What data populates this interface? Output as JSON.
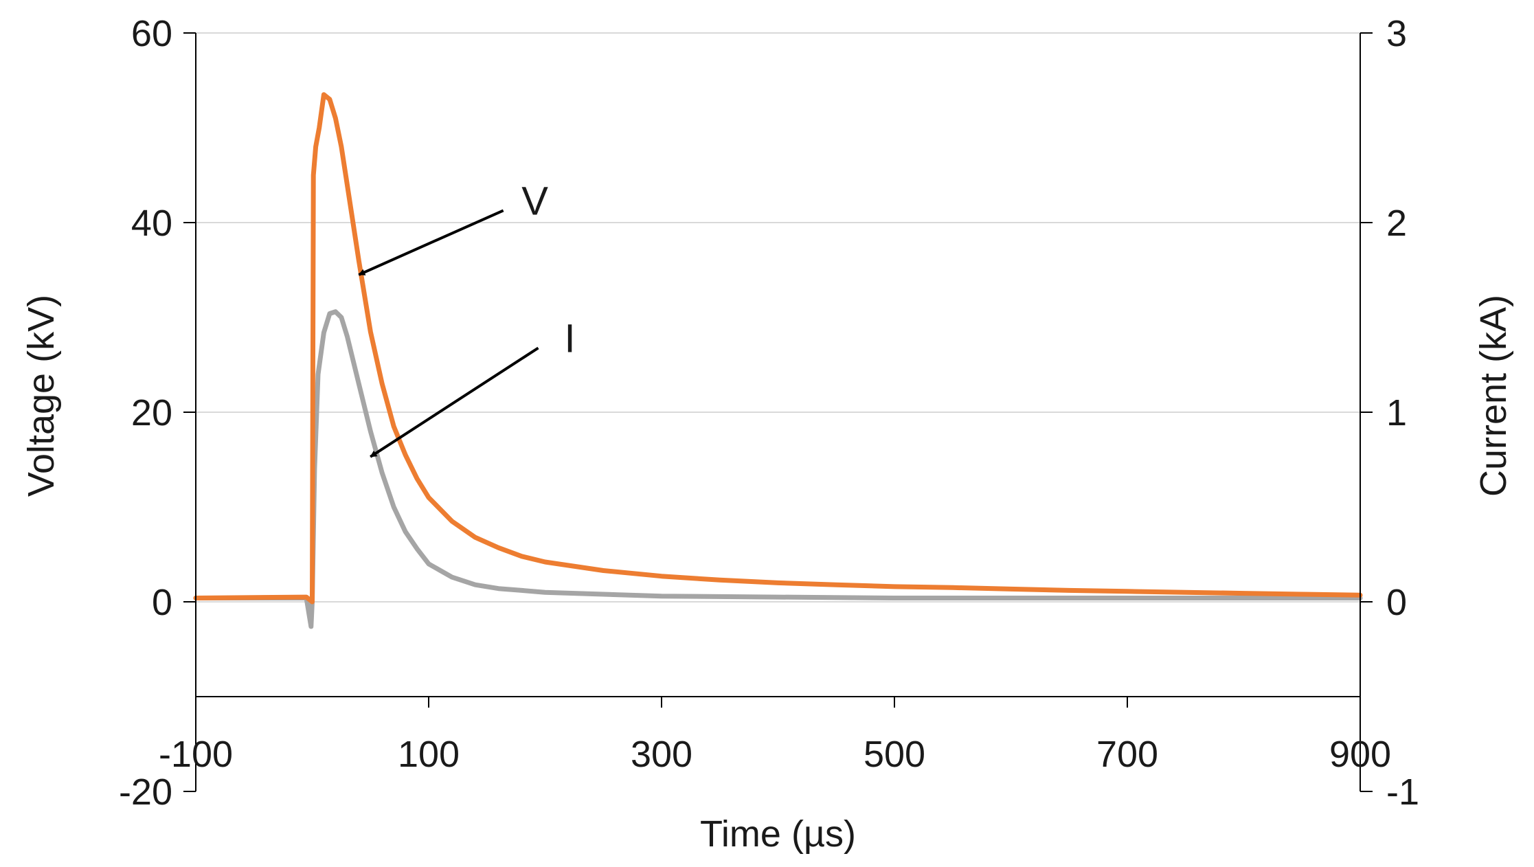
{
  "chart_data": {
    "type": "line",
    "xlabel": "Time (µs)",
    "ylabel": "Voltage (kV)",
    "y2label": "Current (kA)",
    "xlim": [
      -100,
      900
    ],
    "ylim": [
      -20,
      60
    ],
    "y2lim": [
      -1,
      3
    ],
    "x_ticks": [
      -100,
      100,
      300,
      500,
      700,
      900
    ],
    "y_ticks": [
      -20,
      0,
      20,
      40,
      60
    ],
    "y2_ticks": [
      -1,
      0,
      1,
      2,
      3
    ],
    "grid": true,
    "series": [
      {
        "name": "V",
        "axis": "left",
        "color": "#ed7d31",
        "x": [
          -100,
          -5,
          0,
          1,
          3,
          6,
          10,
          15,
          20,
          25,
          30,
          40,
          50,
          60,
          70,
          80,
          90,
          100,
          120,
          140,
          160,
          180,
          200,
          250,
          300,
          350,
          400,
          450,
          500,
          550,
          600,
          650,
          700,
          750,
          800,
          850,
          900
        ],
        "values": [
          0.4,
          0.5,
          0,
          45,
          48,
          50,
          53.5,
          53,
          51,
          48,
          44,
          36,
          28.5,
          23,
          18.5,
          15.5,
          13,
          11,
          8.5,
          6.8,
          5.7,
          4.8,
          4.2,
          3.3,
          2.7,
          2.3,
          2.0,
          1.8,
          1.6,
          1.5,
          1.35,
          1.2,
          1.1,
          1.0,
          0.9,
          0.8,
          0.7
        ]
      },
      {
        "name": "I",
        "axis": "right",
        "color": "#a5a5a5",
        "x": [
          -100,
          -5,
          -1,
          0,
          2,
          5,
          10,
          15,
          20,
          25,
          30,
          40,
          50,
          60,
          70,
          80,
          90,
          100,
          120,
          140,
          160,
          180,
          200,
          250,
          300,
          400,
          500,
          600,
          700,
          800,
          900
        ],
        "values": [
          0.02,
          0.02,
          -0.13,
          0.0,
          0.7,
          1.2,
          1.42,
          1.52,
          1.53,
          1.5,
          1.4,
          1.15,
          0.9,
          0.68,
          0.5,
          0.37,
          0.28,
          0.2,
          0.13,
          0.09,
          0.07,
          0.06,
          0.05,
          0.04,
          0.03,
          0.025,
          0.02,
          0.02,
          0.02,
          0.02,
          0.02
        ]
      }
    ],
    "annotations": [
      {
        "text": "V",
        "target_series": "V",
        "target_x": 40,
        "target_y": 34.5,
        "text_x": 170,
        "text_y": 42
      },
      {
        "text": "I",
        "target_series": "I",
        "target_x": 50,
        "target_y": 15.3,
        "text_x": 200,
        "text_y": 27.5
      }
    ]
  }
}
